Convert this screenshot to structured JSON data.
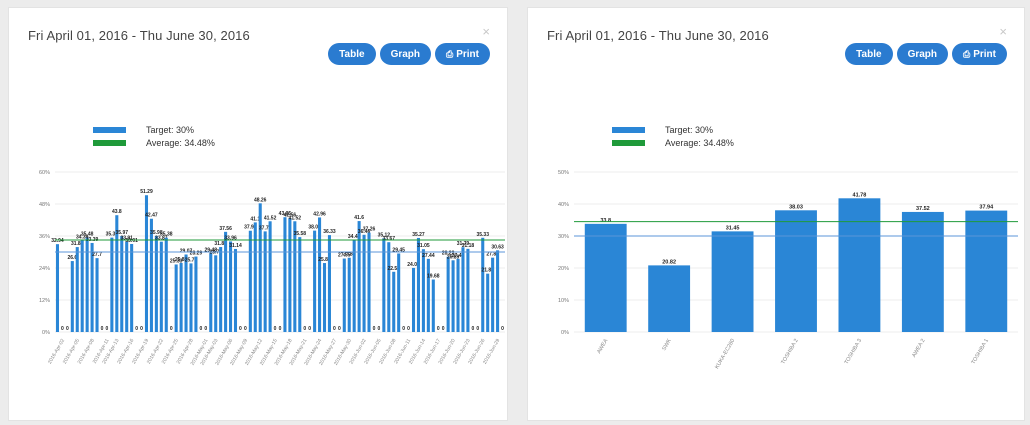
{
  "panels": [
    {
      "title": "Fri April 01, 2016 - Thu June 30, 2016",
      "close_label": "×",
      "buttons": {
        "table": "Table",
        "graph": "Graph",
        "print": "Print"
      },
      "legend": {
        "target": "Target: 30%",
        "average": "Average: 34.48%"
      }
    },
    {
      "title": "Fri April 01, 2016 - Thu June 30, 2016",
      "close_label": "×",
      "buttons": {
        "table": "Table",
        "graph": "Graph",
        "print": "Print"
      },
      "legend": {
        "target": "Target: 30%",
        "average": "Average: 34.48%"
      }
    }
  ],
  "icons": {
    "print": "printer-icon",
    "close": "close-icon"
  },
  "colors": {
    "bar": "#2a86d6",
    "target_line": "#5b95d8",
    "average_line": "#1f9a3a",
    "button": "#2a7bd0"
  },
  "chart_data": [
    {
      "type": "bar",
      "title": "",
      "xlabel": "",
      "ylabel": "",
      "ylim": [
        0,
        60
      ],
      "yticks": [
        "0%",
        "12%",
        "24%",
        "36%",
        "48%",
        "60%"
      ],
      "grid": true,
      "legend_position": "top-left",
      "reference_lines": [
        {
          "name": "Target: 30%",
          "value": 30
        },
        {
          "name": "Average: 34.48%",
          "value": 34.48
        }
      ],
      "categories": [
        "2016-Apr-01",
        "2016-Apr-02",
        "2016-Apr-03",
        "2016-Apr-04",
        "2016-Apr-05",
        "2016-Apr-06",
        "2016-Apr-07",
        "2016-Apr-08",
        "2016-Apr-09",
        "2016-Apr-10",
        "2016-Apr-11",
        "2016-Apr-12",
        "2016-Apr-13",
        "2016-Apr-14",
        "2016-Apr-15",
        "2016-Apr-16",
        "2016-Apr-17",
        "2016-Apr-18",
        "2016-Apr-19",
        "2016-Apr-20",
        "2016-Apr-21",
        "2016-Apr-22",
        "2016-Apr-23",
        "2016-Apr-24",
        "2016-Apr-25",
        "2016-Apr-26",
        "2016-Apr-27",
        "2016-Apr-28",
        "2016-Apr-29",
        "2016-Apr-30",
        "2016-May-01",
        "2016-May-02",
        "2016-May-03",
        "2016-May-04",
        "2016-May-05",
        "2016-May-06",
        "2016-May-07",
        "2016-May-08",
        "2016-May-09",
        "2016-May-10",
        "2016-May-11",
        "2016-May-12",
        "2016-May-13",
        "2016-May-14",
        "2016-May-15",
        "2016-May-16",
        "2016-May-17",
        "2016-May-18",
        "2016-May-19",
        "2016-May-20",
        "2016-May-21",
        "2016-May-22",
        "2016-May-23",
        "2016-May-24",
        "2016-May-25",
        "2016-May-26",
        "2016-May-27",
        "2016-May-28",
        "2016-May-29",
        "2016-May-30",
        "2016-May-31",
        "2016-Jun-01",
        "2016-Jun-02",
        "2016-Jun-03",
        "2016-Jun-04",
        "2016-Jun-05",
        "2016-Jun-06",
        "2016-Jun-07",
        "2016-Jun-08",
        "2016-Jun-09",
        "2016-Jun-10",
        "2016-Jun-11",
        "2016-Jun-12",
        "2016-Jun-13",
        "2016-Jun-14",
        "2016-Jun-15",
        "2016-Jun-16",
        "2016-Jun-17",
        "2016-Jun-18",
        "2016-Jun-19",
        "2016-Jun-20",
        "2016-Jun-21",
        "2016-Jun-22",
        "2016-Jun-23",
        "2016-Jun-24",
        "2016-Jun-25",
        "2016-Jun-26",
        "2016-Jun-27",
        "2016-Jun-28",
        "2016-Jun-29",
        "2016-Jun-30"
      ],
      "xtick_labels": [
        "2016-Apr-02",
        "2016-Apr-05",
        "2016-Apr-08",
        "2016-Apr-11",
        "2016-Apr-13",
        "2016-Apr-16",
        "2016-Apr-19",
        "2016-Apr-22",
        "2016-Apr-25",
        "2016-Apr-28",
        "2016-May-01",
        "2016-May-03",
        "2016-May-06",
        "2016-May-09",
        "2016-May-12",
        "2016-May-15",
        "2016-May-18",
        "2016-May-21",
        "2016-May-24",
        "2016-May-27",
        "2016-May-30",
        "2016-Jun-02",
        "2016-Jun-05",
        "2016-Jun-08",
        "2016-Jun-11",
        "2016-Jun-14",
        "2016-Jun-17",
        "2016-Jun-20",
        "2016-Jun-23",
        "2016-Jun-26",
        "2016-Jun-29"
      ],
      "series": [
        {
          "values": [
            32.94,
            0,
            0,
            26.6,
            31.85,
            34.39,
            35.48,
            33.39,
            27.7,
            0,
            0,
            35.39,
            43.8,
            35.97,
            33.91,
            33.01,
            0,
            0,
            51.29,
            42.47,
            35.98,
            33.87,
            35.38,
            0,
            25.33,
            25.89,
            29.07,
            25.73,
            28.29,
            0,
            0,
            29.48,
            28.75,
            31.86,
            37.56,
            33.96,
            31.14,
            0,
            0,
            37.97,
            41.1,
            48.26,
            37.73,
            41.52,
            0,
            0,
            43.05,
            42.56,
            41.52,
            35.58,
            0,
            0,
            38.02,
            42.96,
            25.86,
            36.33,
            0,
            0,
            27.55,
            27.85,
            34.44,
            41.6,
            36.46,
            37.26,
            0,
            0,
            35.12,
            33.67,
            22.58,
            29.45,
            0,
            0,
            24.03,
            35.27,
            31.05,
            27.44,
            19.68,
            0,
            0,
            28.22,
            26.89,
            27.45,
            31.79,
            31.18,
            0,
            0,
            35.33,
            21.88,
            27.88,
            30.63,
            0
          ]
        }
      ]
    },
    {
      "type": "bar",
      "title": "",
      "xlabel": "",
      "ylabel": "",
      "ylim": [
        0,
        50
      ],
      "yticks": [
        "0%",
        "10%",
        "20%",
        "30%",
        "40%",
        "50%"
      ],
      "grid": true,
      "legend_position": "top-left",
      "reference_lines": [
        {
          "name": "Target: 30%",
          "value": 30
        },
        {
          "name": "Average: 34.48%",
          "value": 34.48
        }
      ],
      "categories": [
        "AWEA",
        "SWK",
        "KUKA-EC280",
        "TOSHIBA 2",
        "TOSHIBA 3",
        "AWEA 2",
        "TOSHIBA 1"
      ],
      "series": [
        {
          "values": [
            33.8,
            20.82,
            31.45,
            38.03,
            41.78,
            37.52,
            37.94
          ]
        }
      ]
    }
  ]
}
